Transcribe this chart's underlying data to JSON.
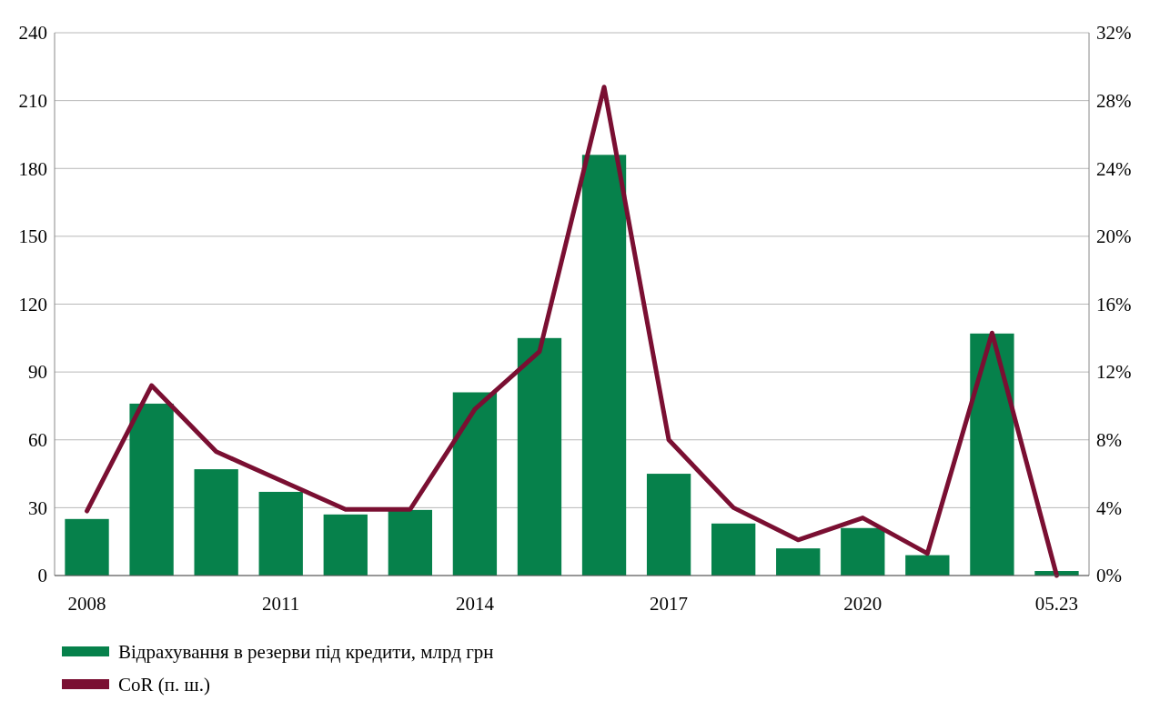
{
  "chart_data": {
    "type": "bar",
    "categories": [
      "2008",
      null,
      null,
      "2011",
      null,
      null,
      "2014",
      null,
      null,
      "2017",
      null,
      null,
      "2020",
      null,
      null,
      "05.23"
    ],
    "series": [
      {
        "name": "Відрахування в резерви під кредити, млрд грн",
        "color": "#06814b",
        "values": [
          25,
          76,
          47,
          37,
          27,
          29,
          81,
          105,
          186,
          45,
          23,
          12,
          21,
          9,
          107,
          2
        ]
      },
      {
        "name": "CoR (п. ш.)",
        "type": "line",
        "axis": "y2",
        "color": "#7a0f32",
        "values": [
          3.8,
          11.2,
          7.3,
          5.6,
          3.9,
          3.9,
          9.8,
          13.2,
          28.8,
          8.0,
          4.0,
          2.1,
          3.4,
          1.3,
          14.3,
          0
        ]
      }
    ],
    "ylim": [
      0,
      240
    ],
    "yticks": [
      0,
      30,
      60,
      90,
      120,
      150,
      180,
      210,
      240
    ],
    "y2lim": [
      0,
      32
    ],
    "y2ticks": [
      {
        "value": 0,
        "label": "0%"
      },
      {
        "value": 4,
        "label": "4%"
      },
      {
        "value": 8,
        "label": "8%"
      },
      {
        "value": 12,
        "label": "12%"
      },
      {
        "value": 16,
        "label": "16%"
      },
      {
        "value": 20,
        "label": "20%"
      },
      {
        "value": 24,
        "label": "24%"
      },
      {
        "value": 28,
        "label": "28%"
      },
      {
        "value": 32,
        "label": "32%"
      }
    ],
    "grid": "y",
    "legend": "bottom",
    "marker": "none",
    "line_style": "solid"
  }
}
